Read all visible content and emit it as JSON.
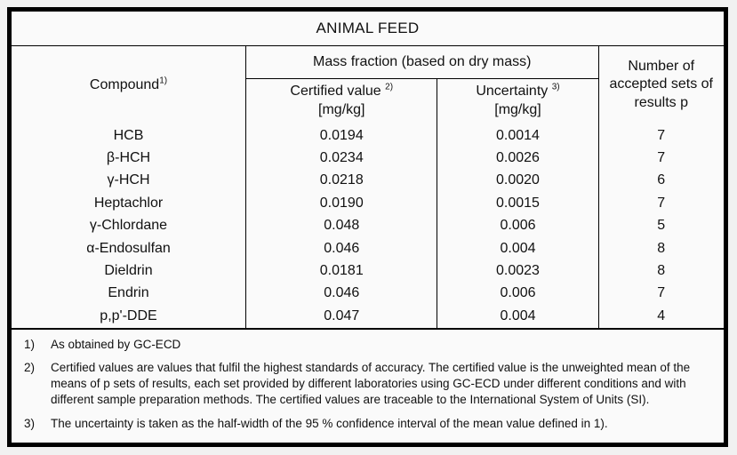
{
  "table": {
    "title": "ANIMAL FEED",
    "columns": {
      "compound": {
        "label": "Compound",
        "footnote_ref": "1)"
      },
      "mass_fraction_group": "Mass fraction (based on dry mass)",
      "certified_value": {
        "label": "Certified value",
        "footnote_ref": "2)",
        "unit": "[mg/kg]"
      },
      "uncertainty": {
        "label": "Uncertainty",
        "footnote_ref": "3)",
        "unit": "[mg/kg]"
      },
      "accepted_sets": "Number of accepted sets of results p"
    },
    "rows": [
      {
        "compound": "HCB",
        "certified_value": "0.0194",
        "uncertainty": "0.0014",
        "accepted_sets": "7"
      },
      {
        "compound": "β-HCH",
        "certified_value": "0.0234",
        "uncertainty": "0.0026",
        "accepted_sets": "7"
      },
      {
        "compound": "γ-HCH",
        "certified_value": "0.0218",
        "uncertainty": "0.0020",
        "accepted_sets": "6"
      },
      {
        "compound": "Heptachlor",
        "certified_value": "0.0190",
        "uncertainty": "0.0015",
        "accepted_sets": "7"
      },
      {
        "compound": "γ-Chlordane",
        "certified_value": "0.048",
        "uncertainty": "0.006",
        "accepted_sets": "5"
      },
      {
        "compound": "α-Endosulfan",
        "certified_value": "0.046",
        "uncertainty": "0.004",
        "accepted_sets": "8"
      },
      {
        "compound": "Dieldrin",
        "certified_value": "0.0181",
        "uncertainty": "0.0023",
        "accepted_sets": "8"
      },
      {
        "compound": "Endrin",
        "certified_value": "0.046",
        "uncertainty": "0.006",
        "accepted_sets": "7"
      },
      {
        "compound": "p,p'-DDE",
        "certified_value": "0.047",
        "uncertainty": "0.004",
        "accepted_sets": "4"
      }
    ],
    "footnotes": [
      {
        "marker": "1)",
        "text": "As obtained by GC-ECD"
      },
      {
        "marker": "2)",
        "text": "Certified values are values that fulfil the highest standards of accuracy. The certified value is the unweighted mean of the means of p sets of results, each set provided by different laboratories using GC-ECD under different conditions and with different sample preparation methods. The certified values are traceable to the International System of Units (SI)."
      },
      {
        "marker": "3)",
        "text": "The uncertainty is taken as the half-width of the 95 % confidence interval of the mean value defined in 1)."
      }
    ]
  }
}
